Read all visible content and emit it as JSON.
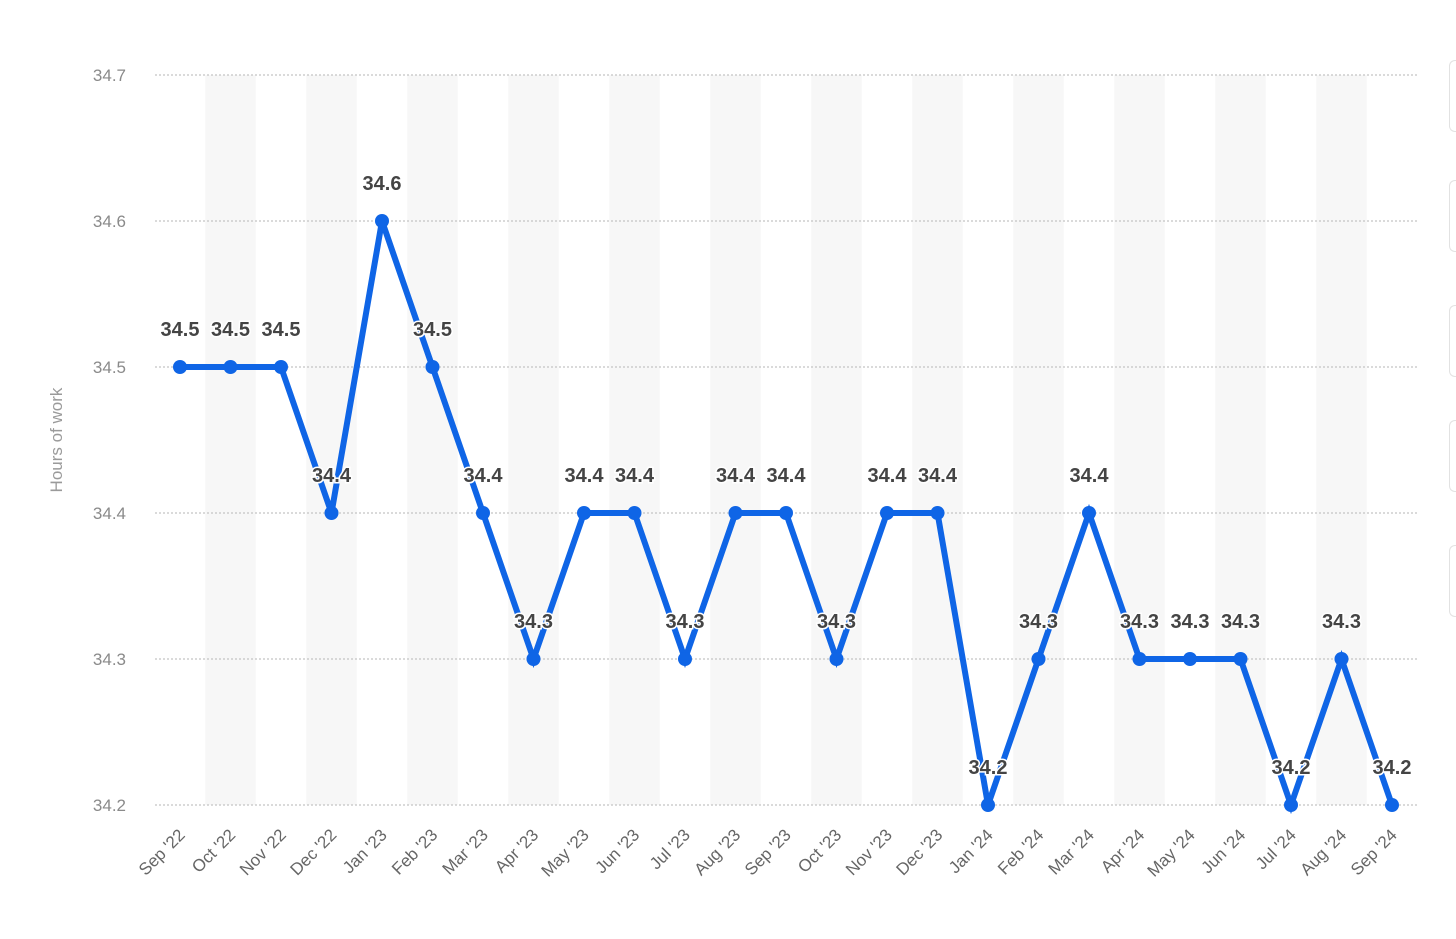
{
  "chart_data": {
    "type": "line",
    "ylabel": "Hours of work",
    "xlabel": "",
    "ylim": [
      34.2,
      34.7
    ],
    "yticks": [
      34.2,
      34.3,
      34.4,
      34.5,
      34.6,
      34.7
    ],
    "grid": true,
    "categories": [
      "Sep '22",
      "Oct '22",
      "Nov '22",
      "Dec '22",
      "Jan '23",
      "Feb '23",
      "Mar '23",
      "Apr '23",
      "May '23",
      "Jun '23",
      "Jul '23",
      "Aug '23",
      "Sep '23",
      "Oct '23",
      "Nov '23",
      "Dec '23",
      "Jan '24",
      "Feb '24",
      "Mar '24",
      "Apr '24",
      "May '24",
      "Jun '24",
      "Jul '24",
      "Aug '24",
      "Sep '24"
    ],
    "values": [
      34.5,
      34.5,
      34.5,
      34.4,
      34.6,
      34.5,
      34.4,
      34.3,
      34.4,
      34.4,
      34.3,
      34.4,
      34.4,
      34.3,
      34.4,
      34.4,
      34.2,
      34.3,
      34.4,
      34.3,
      34.3,
      34.3,
      34.2,
      34.3,
      34.2
    ],
    "color": "#0f65e6",
    "band_color": "#f7f7f7",
    "grid_color": "#c4c4c4"
  }
}
